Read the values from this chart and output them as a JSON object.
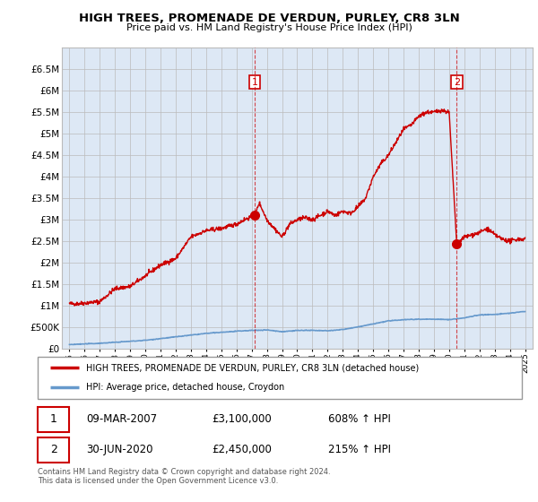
{
  "title": "HIGH TREES, PROMENADE DE VERDUN, PURLEY, CR8 3LN",
  "subtitle": "Price paid vs. HM Land Registry's House Price Index (HPI)",
  "ylim": [
    0,
    7000000
  ],
  "yticks": [
    0,
    500000,
    1000000,
    1500000,
    2000000,
    2500000,
    3000000,
    3500000,
    4000000,
    4500000,
    5000000,
    5500000,
    6000000,
    6500000
  ],
  "ytick_labels": [
    "£0",
    "£500K",
    "£1M",
    "£1.5M",
    "£2M",
    "£2.5M",
    "£3M",
    "£3.5M",
    "£4M",
    "£4.5M",
    "£5M",
    "£5.5M",
    "£6M",
    "£6.5M"
  ],
  "xlim_start": 1994.5,
  "xlim_end": 2025.5,
  "property_color": "#cc0000",
  "hpi_color": "#6699cc",
  "bg_fill_color": "#dde8f5",
  "annotation1_date": 2007.19,
  "annotation1_value": 3100000,
  "annotation2_date": 2020.5,
  "annotation2_value": 2450000,
  "legend_label1": "HIGH TREES, PROMENADE DE VERDUN, PURLEY, CR8 3LN (detached house)",
  "legend_label2": "HPI: Average price, detached house, Croydon",
  "table_row1": [
    "1",
    "09-MAR-2007",
    "£3,100,000",
    "608% ↑ HPI"
  ],
  "table_row2": [
    "2",
    "30-JUN-2020",
    "£2,450,000",
    "215% ↑ HPI"
  ],
  "footnote": "Contains HM Land Registry data © Crown copyright and database right 2024.\nThis data is licensed under the Open Government Licence v3.0.",
  "background_color": "#ffffff",
  "grid_color": "#bbbbbb",
  "property_key_points": {
    "1995.0": 1050000,
    "1995.5": 1050000,
    "1997.0": 1100000,
    "1998.0": 1400000,
    "1999.0": 1450000,
    "2000.0": 1700000,
    "2001.0": 1950000,
    "2002.0": 2100000,
    "2003.0": 2600000,
    "2004.0": 2750000,
    "2005.0": 2800000,
    "2006.0": 2900000,
    "2006.5": 3000000,
    "2007.19": 3100000,
    "2007.5": 3400000,
    "2008.0": 3000000,
    "2008.5": 2800000,
    "2009.0": 2600000,
    "2009.5": 2900000,
    "2010.0": 3000000,
    "2010.5": 3050000,
    "2011.0": 3000000,
    "2011.5": 3100000,
    "2012.0": 3200000,
    "2012.5": 3100000,
    "2013.0": 3200000,
    "2013.5": 3150000,
    "2014.0": 3300000,
    "2014.5": 3500000,
    "2015.0": 4000000,
    "2015.5": 4300000,
    "2016.0": 4500000,
    "2016.5": 4800000,
    "2017.0": 5100000,
    "2017.5": 5200000,
    "2018.0": 5400000,
    "2018.5": 5500000,
    "2019.0": 5500000,
    "2019.5": 5550000,
    "2020.0": 5500000,
    "2020.5": 2450000,
    "2021.0": 2600000,
    "2021.5": 2650000,
    "2022.0": 2700000,
    "2022.5": 2800000,
    "2023.0": 2650000,
    "2023.5": 2550000,
    "2024.0": 2500000,
    "2024.5": 2550000,
    "2025.0": 2550000
  },
  "hpi_key_points": {
    "1995.0": 100000,
    "1997.0": 130000,
    "2000.0": 200000,
    "2002.0": 280000,
    "2004.0": 360000,
    "2006.0": 410000,
    "2007.0": 430000,
    "2008.0": 440000,
    "2009.0": 400000,
    "2010.0": 430000,
    "2011.0": 430000,
    "2012.0": 420000,
    "2013.0": 450000,
    "2014.0": 510000,
    "2015.0": 580000,
    "2016.0": 650000,
    "2017.0": 680000,
    "2018.0": 690000,
    "2019.0": 690000,
    "2020.0": 680000,
    "2021.0": 720000,
    "2022.0": 790000,
    "2023.0": 800000,
    "2024.0": 830000,
    "2025.0": 870000
  }
}
